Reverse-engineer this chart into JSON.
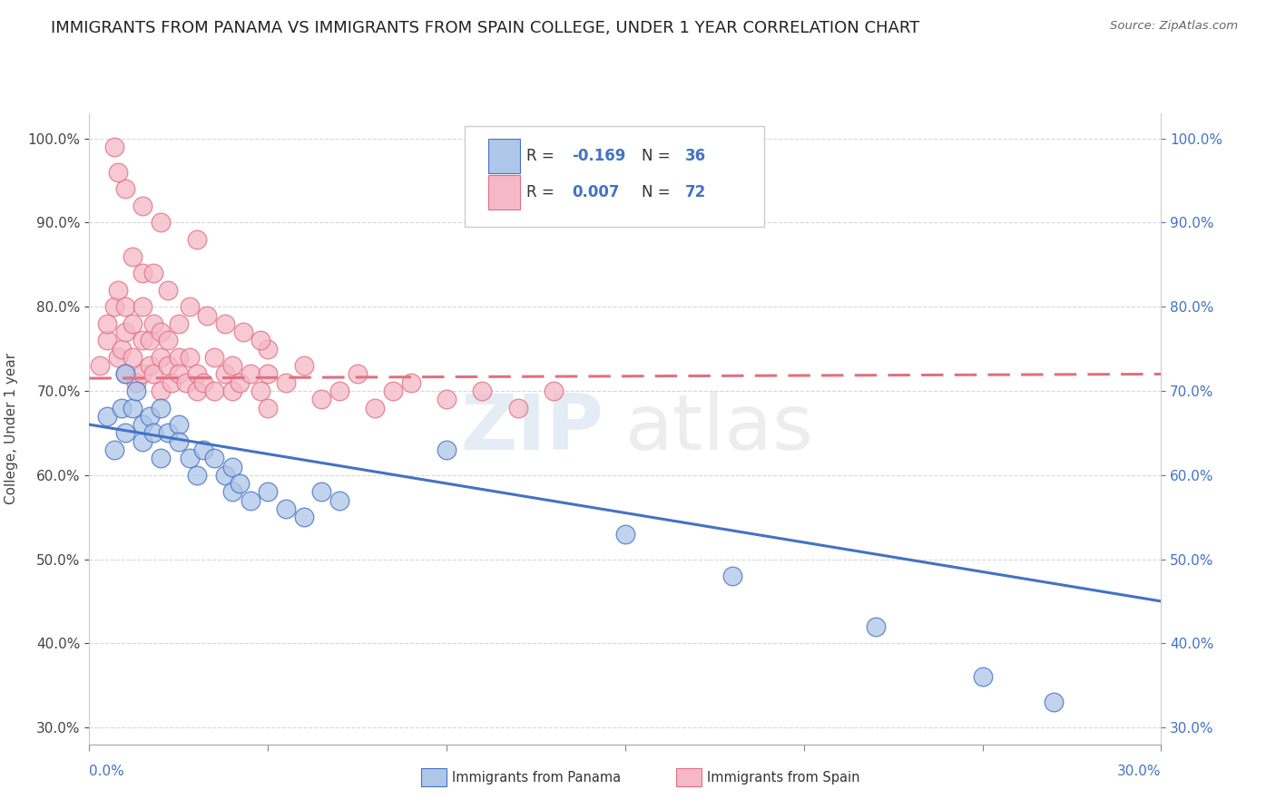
{
  "title": "IMMIGRANTS FROM PANAMA VS IMMIGRANTS FROM SPAIN COLLEGE, UNDER 1 YEAR CORRELATION CHART",
  "source": "Source: ZipAtlas.com",
  "ylabel": "College, Under 1 year",
  "legend_label_blue": "Immigrants from Panama",
  "legend_label_pink": "Immigrants from Spain",
  "R_blue": -0.169,
  "N_blue": 36,
  "R_pink": 0.007,
  "N_pink": 72,
  "xmin": 0.0,
  "xmax": 0.3,
  "ymin": 0.28,
  "ymax": 1.03,
  "color_blue": "#aec6e8",
  "color_pink": "#f5b8c8",
  "line_color_blue": "#4472c4",
  "line_color_pink": "#e07080",
  "background_color": "#ffffff",
  "grid_color": "#d8d8d8",
  "title_fontsize": 13,
  "axis_label_fontsize": 11,
  "tick_fontsize": 11,
  "blue_scatter_x": [
    0.005,
    0.007,
    0.009,
    0.01,
    0.01,
    0.012,
    0.013,
    0.015,
    0.015,
    0.017,
    0.018,
    0.02,
    0.02,
    0.022,
    0.025,
    0.025,
    0.028,
    0.03,
    0.032,
    0.035,
    0.038,
    0.04,
    0.04,
    0.042,
    0.045,
    0.05,
    0.055,
    0.06,
    0.065,
    0.07,
    0.1,
    0.15,
    0.18,
    0.22,
    0.25,
    0.27
  ],
  "blue_scatter_y": [
    0.67,
    0.63,
    0.68,
    0.65,
    0.72,
    0.68,
    0.7,
    0.64,
    0.66,
    0.67,
    0.65,
    0.62,
    0.68,
    0.65,
    0.66,
    0.64,
    0.62,
    0.6,
    0.63,
    0.62,
    0.6,
    0.61,
    0.58,
    0.59,
    0.57,
    0.58,
    0.56,
    0.55,
    0.58,
    0.57,
    0.63,
    0.53,
    0.48,
    0.42,
    0.36,
    0.33
  ],
  "pink_scatter_x": [
    0.003,
    0.005,
    0.005,
    0.007,
    0.008,
    0.008,
    0.009,
    0.01,
    0.01,
    0.01,
    0.012,
    0.012,
    0.013,
    0.015,
    0.015,
    0.015,
    0.015,
    0.017,
    0.017,
    0.018,
    0.018,
    0.02,
    0.02,
    0.02,
    0.022,
    0.022,
    0.023,
    0.025,
    0.025,
    0.025,
    0.027,
    0.028,
    0.03,
    0.03,
    0.032,
    0.035,
    0.035,
    0.038,
    0.04,
    0.04,
    0.042,
    0.045,
    0.048,
    0.05,
    0.05,
    0.055,
    0.06,
    0.065,
    0.07,
    0.075,
    0.08,
    0.085,
    0.09,
    0.1,
    0.11,
    0.12,
    0.13,
    0.05,
    0.03,
    0.02,
    0.015,
    0.01,
    0.008,
    0.007,
    0.012,
    0.018,
    0.022,
    0.028,
    0.033,
    0.038,
    0.043,
    0.048
  ],
  "pink_scatter_y": [
    0.73,
    0.76,
    0.78,
    0.8,
    0.74,
    0.82,
    0.75,
    0.77,
    0.72,
    0.8,
    0.74,
    0.78,
    0.71,
    0.76,
    0.72,
    0.8,
    0.84,
    0.76,
    0.73,
    0.78,
    0.72,
    0.74,
    0.7,
    0.77,
    0.73,
    0.76,
    0.71,
    0.74,
    0.72,
    0.78,
    0.71,
    0.74,
    0.72,
    0.7,
    0.71,
    0.74,
    0.7,
    0.72,
    0.7,
    0.73,
    0.71,
    0.72,
    0.7,
    0.72,
    0.68,
    0.71,
    0.73,
    0.69,
    0.7,
    0.72,
    0.68,
    0.7,
    0.71,
    0.69,
    0.7,
    0.68,
    0.7,
    0.75,
    0.88,
    0.9,
    0.92,
    0.94,
    0.96,
    0.99,
    0.86,
    0.84,
    0.82,
    0.8,
    0.79,
    0.78,
    0.77,
    0.76
  ],
  "blue_trend_x0": 0.0,
  "blue_trend_y0": 0.66,
  "blue_trend_x1": 0.3,
  "blue_trend_y1": 0.45,
  "pink_trend_x0": 0.0,
  "pink_trend_y0": 0.715,
  "pink_trend_x1": 0.3,
  "pink_trend_y1": 0.72
}
